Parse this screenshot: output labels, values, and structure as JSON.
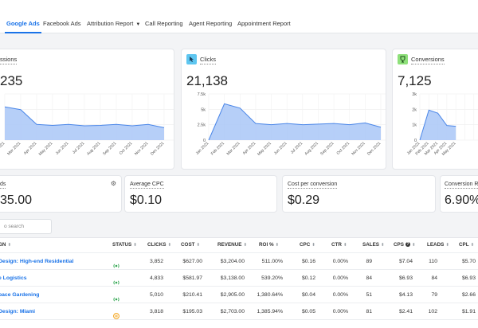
{
  "tabs": [
    {
      "label": "Google Ads",
      "active": true
    },
    {
      "label": "Facebook Ads"
    },
    {
      "label": "Attribution Report"
    },
    {
      "label": "Call Reporting"
    },
    {
      "label": "Agent Reporting"
    },
    {
      "label": "Appointment Report"
    }
  ],
  "cards": [
    {
      "title": "ssions",
      "value": "235"
    },
    {
      "title": "Clicks",
      "value": "21,138",
      "icon": "cursor-click-icon",
      "icon_color": "#5ec6f0"
    },
    {
      "title": "Conversions",
      "value": "7,125",
      "icon": "trophy-icon",
      "icon_color": "#8ee07a"
    }
  ],
  "chart_data": [
    {
      "type": "area",
      "x": [
        "Feb 2021",
        "Mar 2021",
        "Apr 2021",
        "May 2021",
        "Jun 2021",
        "Jul 2021",
        "Aug 2021",
        "Sep 2021",
        "Oct 2021",
        "Nov 2021",
        "Dec 2021"
      ],
      "x_labels": [
        "Feb 2021",
        "Mar 2021",
        "Apr 2021",
        "May 2021",
        "Jun 2021",
        "Jul 2021",
        "Aug 2021",
        "Sep 2021",
        "Oct 2021",
        "Nov 2021",
        "Dec 2021"
      ],
      "values": [
        0.72,
        0.66,
        0.34,
        0.32,
        0.34,
        0.31,
        0.32,
        0.34,
        0.31,
        0.34,
        0.27
      ],
      "y_ticks": [],
      "ylim": [
        0,
        1
      ],
      "clip_left": 16
    },
    {
      "type": "area",
      "x": [
        "Jan 2021",
        "Feb 2021",
        "Mar 2021",
        "Apr 2021",
        "May 2021",
        "Jun 2021",
        "Jul 2021",
        "Aug 2021",
        "Sep 2021",
        "Oct 2021",
        "Nov 2021",
        "Dec 2021"
      ],
      "x_labels": [
        "Jan 2021",
        "Feb 2021",
        "Mar 2021",
        "Apr 2021",
        "May 2021",
        "Jun 2021",
        "Jul 2021",
        "Aug 2021",
        "Sep 2021",
        "Oct 2021",
        "Nov 2021",
        "Dec 2021"
      ],
      "values": [
        0,
        5900,
        5200,
        2700,
        2500,
        2700,
        2500,
        2600,
        2700,
        2500,
        2800,
        2100
      ],
      "y_ticks": [
        "0",
        "2.5k",
        "5k",
        "7.5k"
      ],
      "ylim": [
        0,
        7500
      ],
      "clip_left": 0
    },
    {
      "type": "area",
      "x": [
        "Jan 2021",
        "Feb 2021",
        "Mar 2021",
        "Apr 2021",
        "May 2021"
      ],
      "x_labels": [
        "Jan 2021",
        "Feb 2021",
        "Mar 2021",
        "Apr 2021",
        "May 2021"
      ],
      "values": [
        0,
        1950,
        1750,
        950,
        900
      ],
      "y_ticks": [
        "0",
        "1k",
        "2k",
        "3k"
      ],
      "ylim": [
        0,
        3000
      ],
      "clip_left": 0
    }
  ],
  "metrics": [
    {
      "label": "ds",
      "value": "35.00"
    },
    {
      "label": "Average CPC",
      "value": "$0.10"
    },
    {
      "label": "Cost per conversion",
      "value": "$0.29"
    },
    {
      "label": "Conversion Ra",
      "value": "6.90%"
    }
  ],
  "search": {
    "placeholder": "o search"
  },
  "table": {
    "headers": [
      "GN",
      "STATUS",
      "CLICKS",
      "COST",
      "REVENUE",
      "ROI %",
      "CPC",
      "CTR",
      "SALES",
      "CPS",
      "LEADS",
      "CPL"
    ],
    "rows": [
      {
        "name": "Design: High-end Residential",
        "status": "active",
        "clicks": "3,852",
        "cost": "$627.00",
        "revenue": "$3,204.00",
        "roi": "511.00%",
        "cpc": "$0.16",
        "ctr": "0.00%",
        "sales": "89",
        "cps": "$7.04",
        "leads": "110",
        "cpl": "$5.70"
      },
      {
        "name": "e Logistics",
        "status": "active",
        "clicks": "4,833",
        "cost": "$581.97",
        "revenue": "$3,138.00",
        "roi": "539.20%",
        "cpc": "$0.12",
        "ctr": "0.00%",
        "sales": "84",
        "cps": "$6.93",
        "leads": "84",
        "cpl": "$6.93"
      },
      {
        "name": "pace Gardening",
        "status": "active",
        "clicks": "5,010",
        "cost": "$210.41",
        "revenue": "$2,905.00",
        "roi": "1,380.64%",
        "cpc": "$0.04",
        "ctr": "0.00%",
        "sales": "51",
        "cps": "$4.13",
        "leads": "79",
        "cpl": "$2.66"
      },
      {
        "name": "Design: Miami",
        "status": "paused",
        "clicks": "3,818",
        "cost": "$195.03",
        "revenue": "$2,703.00",
        "roi": "1,385.94%",
        "cpc": "$0.05",
        "ctr": "0.00%",
        "sales": "81",
        "cps": "$2.41",
        "leads": "102",
        "cpl": "$1.91"
      }
    ]
  },
  "colors": {
    "accent": "#1a73e8",
    "area_fill": "#a9c7f7",
    "area_line": "#4a86e8",
    "status_active": "#34a853",
    "status_paused": "#f29900"
  }
}
